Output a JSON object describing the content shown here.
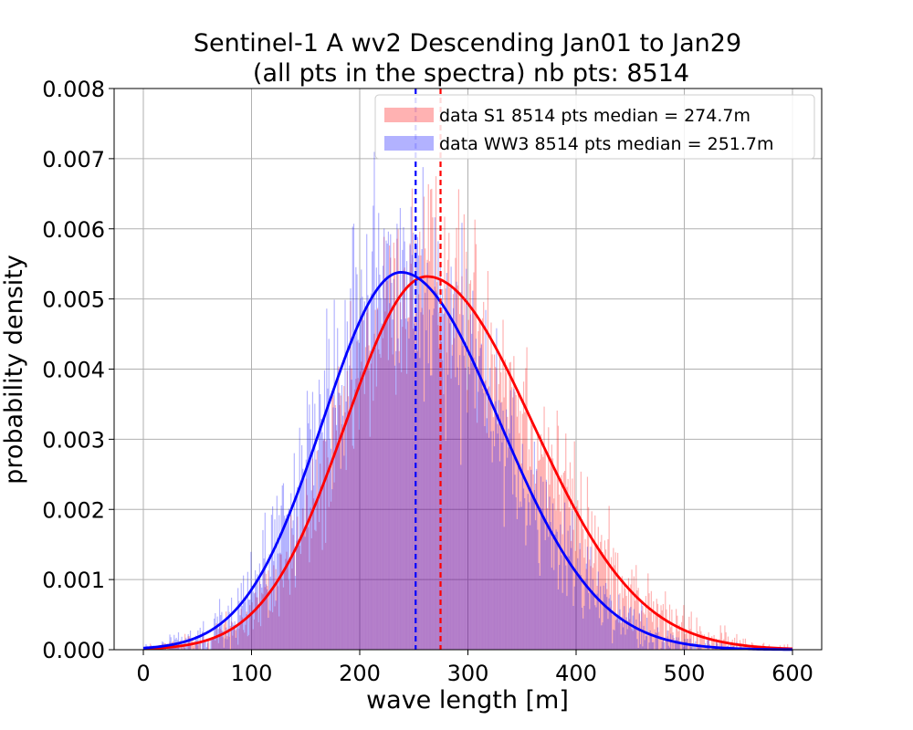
{
  "chart_data": {
    "type": "histogram",
    "title_line1": "Sentinel-1 A wv2 Descending Jan01 to Jan29",
    "title_line2": "(all pts in the spectra) nb pts: 8514",
    "xlabel": "wave length [m]",
    "ylabel": "probability density",
    "xlim": [
      -27,
      627
    ],
    "ylim": [
      0,
      0.008
    ],
    "grid": true,
    "x_ticks": [
      0,
      100,
      200,
      300,
      400,
      500,
      600
    ],
    "x_tick_labels": [
      "0",
      "100",
      "200",
      "300",
      "400",
      "500",
      "600"
    ],
    "y_ticks": [
      0,
      0.001,
      0.002,
      0.003,
      0.004,
      0.005,
      0.006,
      0.007,
      0.008
    ],
    "y_tick_labels": [
      "0.000",
      "0.001",
      "0.002",
      "0.003",
      "0.004",
      "0.005",
      "0.006",
      "0.007",
      "0.008"
    ],
    "bin_width": 1,
    "legend_position": "top-right",
    "series": [
      {
        "name": "data S1 8514 pts median = 274.7m",
        "color": "#ff0000",
        "bar_alpha": 0.3,
        "median": 274.7,
        "fit_mode": 262,
        "fit_peak": 0.00532,
        "fit_sigma_left": 75,
        "fit_sigma_right": 98,
        "fit_alpha": 0.45
      },
      {
        "name": "data WW3 8514 pts median = 251.7m",
        "color": "#0000ff",
        "bar_alpha": 0.3,
        "median": 251.7,
        "fit_mode": 238,
        "fit_peak": 0.00538,
        "fit_sigma_left": 72,
        "fit_sigma_right": 91,
        "fit_alpha": 0.5
      }
    ]
  }
}
